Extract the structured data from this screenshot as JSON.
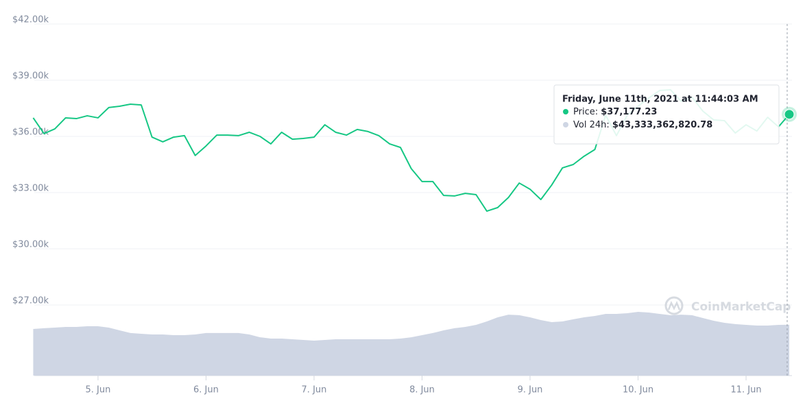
{
  "chart_data": {
    "type": "line",
    "x": [
      4.4,
      4.5,
      4.6,
      4.7,
      4.8,
      4.9,
      5.0,
      5.1,
      5.2,
      5.3,
      5.4,
      5.5,
      5.6,
      5.7,
      5.8,
      5.9,
      6.0,
      6.1,
      6.2,
      6.3,
      6.4,
      6.5,
      6.6,
      6.7,
      6.8,
      6.9,
      7.0,
      7.1,
      7.2,
      7.3,
      7.4,
      7.5,
      7.6,
      7.7,
      7.8,
      7.9,
      8.0,
      8.1,
      8.2,
      8.3,
      8.4,
      8.5,
      8.6,
      8.7,
      8.8,
      8.9,
      9.0,
      9.1,
      9.2,
      9.3,
      9.4,
      9.5,
      9.6,
      9.7,
      9.8,
      9.9,
      10.0,
      10.1,
      10.2,
      10.3,
      10.4,
      10.5,
      10.6,
      10.7,
      10.8,
      10.9,
      11.0,
      11.1,
      11.2,
      11.3,
      11.4
    ],
    "series": [
      {
        "type": "line",
        "color": "#16c784",
        "values": [
          36990,
          36150,
          36400,
          36990,
          36950,
          37100,
          36990,
          37540,
          37610,
          37720,
          37680,
          35960,
          35710,
          35960,
          36040,
          34980,
          35490,
          36070,
          36070,
          36040,
          36220,
          36000,
          35600,
          36220,
          35850,
          35890,
          35960,
          36620,
          36220,
          36070,
          36370,
          36260,
          36040,
          35600,
          35410,
          34280,
          33590,
          33590,
          32850,
          32820,
          32960,
          32890,
          32010,
          32200,
          32740,
          33510,
          33180,
          32630,
          33400,
          34320,
          34500,
          34940,
          35300,
          37130,
          36040,
          37130,
          37610,
          38050,
          38450,
          38490,
          37870,
          38090,
          37350,
          36880,
          36840,
          36180,
          36620,
          36290,
          37020,
          36510,
          37177.23
        ]
      },
      {
        "type": "area",
        "axis": "y2",
        "color": "#cfd6e4",
        "values": [
          39800000000.0,
          40400000000.0,
          40900000000.0,
          41500000000.0,
          41500000000.0,
          42100000000.0,
          42100000000.0,
          40900000000.0,
          38600000000.0,
          36300000000.0,
          35700000000.0,
          35100000000.0,
          35100000000.0,
          34500000000.0,
          34500000000.0,
          35100000000.0,
          36300000000.0,
          36300000000.0,
          36300000000.0,
          36300000000.0,
          35100000000.0,
          32700000000.0,
          31600000000.0,
          31600000000.0,
          31000000000.0,
          30400000000.0,
          29800000000.0,
          30400000000.0,
          31000000000.0,
          31000000000.0,
          31000000000.0,
          31000000000.0,
          31000000000.0,
          31000000000.0,
          31600000000.0,
          32700000000.0,
          34500000000.0,
          36300000000.0,
          38600000000.0,
          40400000000.0,
          41500000000.0,
          43300000000.0,
          46200000000.0,
          49700000000.0,
          52000000000.0,
          51500000000.0,
          49700000000.0,
          47400000000.0,
          45600000000.0,
          46200000000.0,
          48000000000.0,
          49700000000.0,
          50900000000.0,
          52600000000.0,
          52600000000.0,
          53200000000.0,
          54400000000.0,
          53800000000.0,
          52600000000.0,
          51500000000.0,
          52000000000.0,
          51500000000.0,
          49100000000.0,
          46800000000.0,
          45000000000.0,
          43900000000.0,
          43300000000.0,
          42700000000.0,
          42700000000.0,
          43300000000.0,
          43333362820.78
        ]
      }
    ],
    "xlim": [
      4.41,
      11.425
    ],
    "xticks": [
      {
        "value": 5,
        "label": "5. Jun"
      },
      {
        "value": 6,
        "label": "6. Jun"
      },
      {
        "value": 7,
        "label": "7. Jun"
      },
      {
        "value": 8,
        "label": "8. Jun"
      },
      {
        "value": 9,
        "label": "9. Jun"
      },
      {
        "value": 10,
        "label": "10. Jun"
      },
      {
        "value": 11,
        "label": "11. Jun"
      }
    ],
    "ylim": [
      23232,
      42000
    ],
    "yticks": [
      {
        "value": 27000,
        "label": "$27.00k"
      },
      {
        "value": 30000,
        "label": "$30.00k"
      },
      {
        "value": 33000,
        "label": "$33.00k"
      },
      {
        "value": 36000,
        "label": "$36.00k"
      },
      {
        "value": 39000,
        "label": "$39.00k"
      },
      {
        "value": 42000,
        "label": "$42.00k"
      }
    ],
    "y2lim": [
      0,
      300000000000
    ],
    "grid": true,
    "tooltip": {
      "title": "Friday, June 11th, 2021 at 11:44:03 AM",
      "items": [
        {
          "label": "Price:",
          "value": "$37,177.23",
          "color": "#16c784"
        },
        {
          "label": "Vol 24h:",
          "value": "$43,333,362,820.78",
          "color": "#cfd6e4"
        }
      ]
    },
    "watermark": "CoinMarketCap"
  }
}
